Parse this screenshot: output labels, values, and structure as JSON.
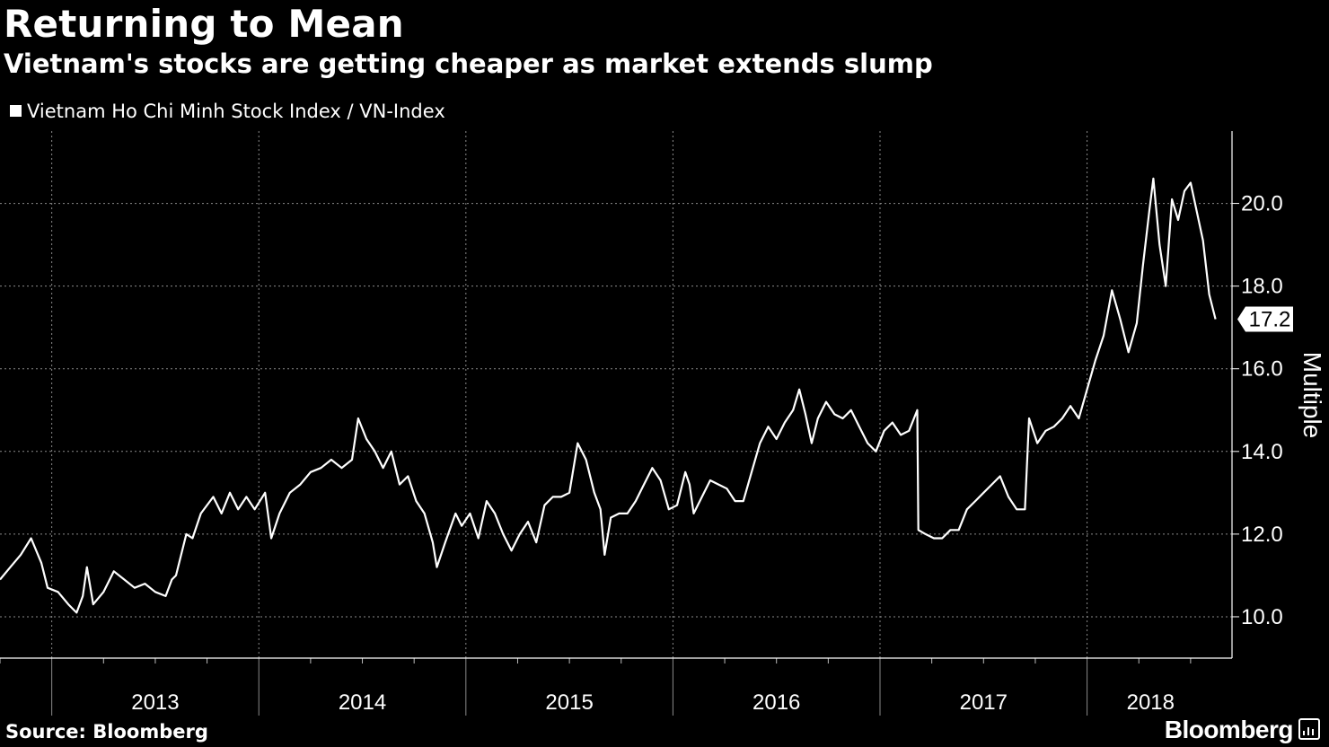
{
  "chart_data": {
    "type": "line",
    "title": "Returning to Mean",
    "subtitle": "Vietnam's stocks are getting cheaper as market extends slump",
    "series": [
      {
        "name": "Vietnam Ho Chi Minh Stock Index / VN-Index",
        "color": "#ffffff",
        "points": [
          [
            2012.75,
            10.9
          ],
          [
            2012.8,
            11.2
          ],
          [
            2012.85,
            11.5
          ],
          [
            2012.9,
            11.9
          ],
          [
            2012.95,
            11.3
          ],
          [
            2012.98,
            10.7
          ],
          [
            2013.03,
            10.6
          ],
          [
            2013.08,
            10.3
          ],
          [
            2013.12,
            10.1
          ],
          [
            2013.15,
            10.5
          ],
          [
            2013.17,
            11.2
          ],
          [
            2013.2,
            10.3
          ],
          [
            2013.25,
            10.6
          ],
          [
            2013.3,
            11.1
          ],
          [
            2013.35,
            10.9
          ],
          [
            2013.4,
            10.7
          ],
          [
            2013.45,
            10.8
          ],
          [
            2013.5,
            10.6
          ],
          [
            2013.55,
            10.5
          ],
          [
            2013.58,
            10.9
          ],
          [
            2013.6,
            11.0
          ],
          [
            2013.65,
            12.0
          ],
          [
            2013.68,
            11.9
          ],
          [
            2013.72,
            12.5
          ],
          [
            2013.78,
            12.9
          ],
          [
            2013.82,
            12.5
          ],
          [
            2013.86,
            13.0
          ],
          [
            2013.9,
            12.6
          ],
          [
            2013.94,
            12.9
          ],
          [
            2013.98,
            12.6
          ],
          [
            2014.03,
            13.0
          ],
          [
            2014.06,
            11.9
          ],
          [
            2014.1,
            12.5
          ],
          [
            2014.15,
            13.0
          ],
          [
            2014.2,
            13.2
          ],
          [
            2014.25,
            13.5
          ],
          [
            2014.3,
            13.6
          ],
          [
            2014.35,
            13.8
          ],
          [
            2014.4,
            13.6
          ],
          [
            2014.45,
            13.8
          ],
          [
            2014.48,
            14.8
          ],
          [
            2014.52,
            14.3
          ],
          [
            2014.56,
            14.0
          ],
          [
            2014.6,
            13.6
          ],
          [
            2014.64,
            14.0
          ],
          [
            2014.68,
            13.2
          ],
          [
            2014.72,
            13.4
          ],
          [
            2014.76,
            12.8
          ],
          [
            2014.8,
            12.5
          ],
          [
            2014.84,
            11.8
          ],
          [
            2014.86,
            11.2
          ],
          [
            2014.9,
            11.8
          ],
          [
            2014.95,
            12.5
          ],
          [
            2014.98,
            12.2
          ],
          [
            2015.02,
            12.5
          ],
          [
            2015.06,
            11.9
          ],
          [
            2015.1,
            12.8
          ],
          [
            2015.14,
            12.5
          ],
          [
            2015.18,
            12.0
          ],
          [
            2015.22,
            11.6
          ],
          [
            2015.26,
            12.0
          ],
          [
            2015.3,
            12.3
          ],
          [
            2015.34,
            11.8
          ],
          [
            2015.38,
            12.7
          ],
          [
            2015.42,
            12.9
          ],
          [
            2015.46,
            12.9
          ],
          [
            2015.5,
            13.0
          ],
          [
            2015.54,
            14.2
          ],
          [
            2015.58,
            13.8
          ],
          [
            2015.62,
            13.0
          ],
          [
            2015.65,
            12.6
          ],
          [
            2015.67,
            11.5
          ],
          [
            2015.7,
            12.4
          ],
          [
            2015.74,
            12.5
          ],
          [
            2015.78,
            12.5
          ],
          [
            2015.82,
            12.8
          ],
          [
            2015.86,
            13.2
          ],
          [
            2015.9,
            13.6
          ],
          [
            2015.94,
            13.3
          ],
          [
            2015.98,
            12.6
          ],
          [
            2016.02,
            12.7
          ],
          [
            2016.06,
            13.5
          ],
          [
            2016.08,
            13.2
          ],
          [
            2016.1,
            12.5
          ],
          [
            2016.14,
            12.9
          ],
          [
            2016.18,
            13.3
          ],
          [
            2016.22,
            13.2
          ],
          [
            2016.26,
            13.1
          ],
          [
            2016.3,
            12.8
          ],
          [
            2016.34,
            12.8
          ],
          [
            2016.38,
            13.5
          ],
          [
            2016.42,
            14.2
          ],
          [
            2016.46,
            14.6
          ],
          [
            2016.5,
            14.3
          ],
          [
            2016.54,
            14.7
          ],
          [
            2016.58,
            15.0
          ],
          [
            2016.61,
            15.5
          ],
          [
            2016.64,
            14.9
          ],
          [
            2016.67,
            14.2
          ],
          [
            2016.7,
            14.8
          ],
          [
            2016.74,
            15.2
          ],
          [
            2016.78,
            14.9
          ],
          [
            2016.82,
            14.8
          ],
          [
            2016.86,
            15.0
          ],
          [
            2016.9,
            14.6
          ],
          [
            2016.94,
            14.2
          ],
          [
            2016.98,
            14.0
          ],
          [
            2017.02,
            14.5
          ],
          [
            2017.06,
            14.7
          ],
          [
            2017.1,
            14.4
          ],
          [
            2017.14,
            14.5
          ],
          [
            2017.18,
            15.0
          ],
          [
            2017.185,
            12.1
          ],
          [
            2017.22,
            12.0
          ],
          [
            2017.26,
            11.9
          ],
          [
            2017.3,
            11.9
          ],
          [
            2017.34,
            12.1
          ],
          [
            2017.38,
            12.1
          ],
          [
            2017.42,
            12.6
          ],
          [
            2017.46,
            12.8
          ],
          [
            2017.5,
            13.0
          ],
          [
            2017.54,
            13.2
          ],
          [
            2017.58,
            13.4
          ],
          [
            2017.62,
            12.9
          ],
          [
            2017.66,
            12.6
          ],
          [
            2017.7,
            12.6
          ],
          [
            2017.72,
            14.8
          ],
          [
            2017.76,
            14.2
          ],
          [
            2017.8,
            14.5
          ],
          [
            2017.84,
            14.6
          ],
          [
            2017.88,
            14.8
          ],
          [
            2017.92,
            15.1
          ],
          [
            2017.96,
            14.8
          ],
          [
            2018.0,
            15.5
          ],
          [
            2018.04,
            16.2
          ],
          [
            2018.08,
            16.8
          ],
          [
            2018.12,
            17.9
          ],
          [
            2018.16,
            17.2
          ],
          [
            2018.2,
            16.4
          ],
          [
            2018.24,
            17.1
          ],
          [
            2018.27,
            18.5
          ],
          [
            2018.3,
            19.8
          ],
          [
            2018.32,
            20.6
          ],
          [
            2018.35,
            19.0
          ],
          [
            2018.38,
            18.0
          ],
          [
            2018.41,
            20.1
          ],
          [
            2018.44,
            19.6
          ],
          [
            2018.47,
            20.3
          ],
          [
            2018.5,
            20.5
          ],
          [
            2018.53,
            19.8
          ],
          [
            2018.56,
            19.1
          ],
          [
            2018.59,
            17.8
          ],
          [
            2018.62,
            17.2
          ]
        ]
      }
    ],
    "x_ticks": [
      "2013",
      "2014",
      "2015",
      "2016",
      "2017",
      "2018"
    ],
    "xlim": [
      2012.75,
      2018.7
    ],
    "y_ticks": [
      "10.0",
      "12.0",
      "14.0",
      "16.0",
      "18.0",
      "20.0"
    ],
    "ylim": [
      9.0,
      21.75
    ],
    "ylabel": "Multiple",
    "last_value_label": "17.2",
    "y_axis_side": "right",
    "grid": true,
    "grid_style": "dotted",
    "legend_position": "top-left",
    "background": "#000000",
    "line_color": "#ffffff"
  },
  "footer": {
    "source": "Source: Bloomberg",
    "brand": "Bloomberg"
  }
}
